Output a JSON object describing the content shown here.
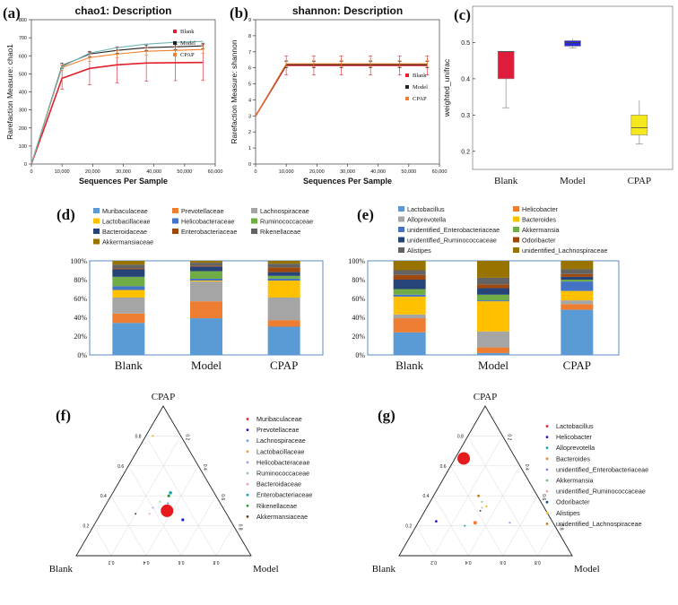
{
  "chart_data": [
    {
      "id": "a",
      "type": "line",
      "panel_label": "(a)",
      "title": "chao1: Description",
      "xlabel": "Sequences Per Sample",
      "ylabel": "Rarefaction Measure: chao1",
      "xlim": [
        0,
        60000
      ],
      "ylim": [
        0,
        800
      ],
      "x_ticks": [
        "0",
        "10,000",
        "20,000",
        "30,000",
        "40,000",
        "50,000",
        "60,000"
      ],
      "y_ticks": [
        "0",
        "100",
        "200",
        "300",
        "400",
        "500",
        "600",
        "700",
        "800"
      ],
      "legend_position": "top-right",
      "x": [
        0,
        10000,
        19000,
        28000,
        37500,
        47000,
        56000
      ],
      "series": [
        {
          "name": "Blank",
          "color": "#e0202c",
          "values": [
            0,
            475,
            530,
            550,
            560,
            562,
            563
          ],
          "err": [
            0,
            60,
            90,
            100,
            100,
            100,
            100
          ]
        },
        {
          "name": "Model",
          "color": "#222222",
          "values": [
            0,
            545,
            610,
            630,
            645,
            650,
            655
          ],
          "err": [
            0,
            15,
            15,
            15,
            15,
            15,
            15
          ]
        },
        {
          "name": "CPAP",
          "color": "#f08030",
          "values": [
            0,
            535,
            590,
            610,
            625,
            630,
            635
          ],
          "err": [
            0,
            15,
            20,
            20,
            20,
            20,
            20
          ]
        },
        {
          "name": "",
          "color": "#70b8b8",
          "values": [
            0,
            540,
            615,
            645,
            665,
            675,
            680
          ],
          "err": [
            0,
            0,
            0,
            0,
            0,
            0,
            0
          ]
        }
      ]
    },
    {
      "id": "b",
      "type": "line",
      "panel_label": "(b)",
      "title": "shannon: Description",
      "xlabel": "Sequences Per Sample",
      "ylabel": "Rarefaction Measure: shannon",
      "xlim": [
        0,
        60000
      ],
      "ylim": [
        0,
        9
      ],
      "x_ticks": [
        "0",
        "10,000",
        "20,000",
        "30,000",
        "40,000",
        "50,000",
        "60,000"
      ],
      "y_ticks": [
        "0",
        "1",
        "2",
        "3",
        "4",
        "5",
        "6",
        "7",
        "8",
        "9"
      ],
      "legend_position": "right",
      "x": [
        0,
        10000,
        19000,
        28000,
        37500,
        47000,
        56000
      ],
      "series": [
        {
          "name": "Blank",
          "color": "#e0202c",
          "values": [
            3.0,
            6.15,
            6.15,
            6.15,
            6.15,
            6.15,
            6.15
          ],
          "err": [
            0,
            0.6,
            0.6,
            0.6,
            0.6,
            0.6,
            0.6
          ]
        },
        {
          "name": "Model",
          "color": "#222222",
          "values": [
            3.0,
            6.2,
            6.2,
            6.2,
            6.2,
            6.2,
            6.2
          ],
          "err": [
            0,
            0.2,
            0.2,
            0.2,
            0.2,
            0.2,
            0.2
          ]
        },
        {
          "name": "CPAP",
          "color": "#f08030",
          "values": [
            3.0,
            6.25,
            6.25,
            6.25,
            6.25,
            6.25,
            6.25
          ],
          "err": [
            0,
            0.2,
            0.2,
            0.2,
            0.2,
            0.2,
            0.2
          ]
        }
      ]
    },
    {
      "id": "c",
      "type": "box",
      "panel_label": "(c)",
      "ylabel": "weighted_unifrac",
      "ylim": [
        0.15,
        0.6
      ],
      "y_ticks": [
        "0.2",
        "0.3",
        "0.4",
        "0.5"
      ],
      "categories": [
        "Blank",
        "Model",
        "CPAP"
      ],
      "boxes": [
        {
          "name": "Blank",
          "color": "#e01c3c",
          "min": 0.32,
          "q1": 0.4,
          "median": 0.475,
          "q3": 0.475,
          "max": 0.475
        },
        {
          "name": "Model",
          "color": "#2a2ad0",
          "min": 0.485,
          "q1": 0.49,
          "median": 0.5,
          "q3": 0.505,
          "max": 0.51
        },
        {
          "name": "CPAP",
          "color": "#f5e81c",
          "min": 0.22,
          "q1": 0.245,
          "median": 0.265,
          "q3": 0.3,
          "max": 0.34
        }
      ]
    },
    {
      "id": "d",
      "type": "stacked_bar",
      "panel_label": "(d)",
      "categories": [
        "Blank",
        "Model",
        "CPAP"
      ],
      "y_ticks": [
        "0%",
        "20%",
        "40%",
        "60%",
        "80%",
        "100%"
      ],
      "series": [
        {
          "name": "Muribaculaceae",
          "color": "#5a9bd5",
          "values": [
            34,
            39,
            30
          ]
        },
        {
          "name": "Prevotellaceae",
          "color": "#ed7d31",
          "values": [
            10,
            18,
            7
          ]
        },
        {
          "name": "Lachnospiraceae",
          "color": "#a5a5a5",
          "values": [
            17,
            21,
            24
          ]
        },
        {
          "name": "Lactobacillaceae",
          "color": "#ffc000",
          "values": [
            8,
            1,
            18
          ]
        },
        {
          "name": "Helicobacteraceae",
          "color": "#4472c4",
          "values": [
            4,
            2,
            2
          ]
        },
        {
          "name": "Ruminococcaceae",
          "color": "#70ad47",
          "values": [
            10,
            8,
            3
          ]
        },
        {
          "name": "Bacteroidaceae",
          "color": "#264478",
          "values": [
            8,
            5,
            4
          ]
        },
        {
          "name": "Enterobacteriaceae",
          "color": "#9e480e",
          "values": [
            1,
            1,
            5
          ]
        },
        {
          "name": "Rikenellaceae",
          "color": "#636363",
          "values": [
            4,
            3,
            4
          ]
        },
        {
          "name": "Akkermansiaceae",
          "color": "#997300",
          "values": [
            4,
            2,
            3
          ]
        }
      ]
    },
    {
      "id": "e",
      "type": "stacked_bar",
      "panel_label": "(e)",
      "categories": [
        "Blank",
        "Model",
        "CPAP"
      ],
      "y_ticks": [
        "0%",
        "20%",
        "40%",
        "60%",
        "80%",
        "100%"
      ],
      "series": [
        {
          "name": "Lactobacillus",
          "color": "#5a9bd5",
          "values": [
            24,
            2,
            48
          ]
        },
        {
          "name": "Helicobacter",
          "color": "#ed7d31",
          "values": [
            15,
            6,
            6
          ]
        },
        {
          "name": "Alloprevotella",
          "color": "#a5a5a5",
          "values": [
            4,
            17,
            4
          ]
        },
        {
          "name": "Bacteroides",
          "color": "#ffc000",
          "values": [
            19,
            32,
            10
          ]
        },
        {
          "name": "unidentified_Enterobacteriaceae",
          "color": "#4472c4",
          "values": [
            2,
            1,
            10
          ]
        },
        {
          "name": "Akkermansia",
          "color": "#70ad47",
          "values": [
            6,
            6,
            2
          ]
        },
        {
          "name": "unidentified_Ruminococcaceae",
          "color": "#264478",
          "values": [
            10,
            7,
            3
          ]
        },
        {
          "name": "Odoribacter",
          "color": "#9e480e",
          "values": [
            5,
            4,
            3
          ]
        },
        {
          "name": "Alistipes",
          "color": "#636363",
          "values": [
            5,
            7,
            5
          ]
        },
        {
          "name": "unidentified_Lachnospiraceae",
          "color": "#997300",
          "values": [
            10,
            18,
            9
          ]
        }
      ]
    },
    {
      "id": "f",
      "type": "ternary",
      "panel_label": "(f)",
      "vertices": {
        "top": "CPAP",
        "left": "Blank",
        "right": "Model"
      },
      "axis_ticks": [
        "0.2",
        "0.4",
        "0.6",
        "0.8"
      ],
      "points": [
        {
          "name": "Muribaculaceae",
          "color": "#e41a1c",
          "cpap": 0.3,
          "blank": 0.33,
          "model": 0.37,
          "size": 7
        },
        {
          "name": "Prevotellaceae",
          "color": "#1a1ac8",
          "cpap": 0.24,
          "blank": 0.27,
          "model": 0.49,
          "size": 1.6
        },
        {
          "name": "Lachnospiraceae",
          "color": "#6fa8dc",
          "cpap": 0.35,
          "blank": 0.3,
          "model": 0.35,
          "size": 1.2
        },
        {
          "name": "Lactobacillaceae",
          "color": "#f0a030",
          "cpap": 0.8,
          "blank": 0.16,
          "model": 0.04,
          "size": 1.0
        },
        {
          "name": "Helicobacteraceae",
          "color": "#a0a0e0",
          "cpap": 0.32,
          "blank": 0.4,
          "model": 0.28,
          "size": 1.0
        },
        {
          "name": "Ruminococcaceae",
          "color": "#90d0a0",
          "cpap": 0.36,
          "blank": 0.34,
          "model": 0.3,
          "size": 1.0
        },
        {
          "name": "Bacteroidaceae",
          "color": "#f4a0a0",
          "cpap": 0.28,
          "blank": 0.44,
          "model": 0.28,
          "size": 1.0
        },
        {
          "name": "Enterobacteriaceae",
          "color": "#17a8b8",
          "cpap": 0.42,
          "blank": 0.25,
          "model": 0.33,
          "size": 1.8
        },
        {
          "name": "Rikenellaceae",
          "color": "#2ca02c",
          "cpap": 0.4,
          "blank": 0.27,
          "model": 0.33,
          "size": 1.6
        },
        {
          "name": "Akkermansiaceae",
          "color": "#6b3a1c",
          "cpap": 0.28,
          "blank": 0.52,
          "model": 0.2,
          "size": 1.0
        }
      ]
    },
    {
      "id": "g",
      "type": "ternary",
      "panel_label": "(g)",
      "vertices": {
        "top": "CPAP",
        "left": "Blank",
        "right": "Model"
      },
      "axis_ticks": [
        "0.2",
        "0.4",
        "0.6",
        "0.8"
      ],
      "points": [
        {
          "name": "Lactobacillus",
          "color": "#e41a1c",
          "cpap": 0.65,
          "blank": 0.3,
          "model": 0.05,
          "size": 7
        },
        {
          "name": "Helicobacter",
          "color": "#1a1ac8",
          "cpap": 0.23,
          "blank": 0.67,
          "model": 0.1,
          "size": 1.4
        },
        {
          "name": "Alloprevotella",
          "color": "#17a8b8",
          "cpap": 0.2,
          "blank": 0.52,
          "model": 0.28,
          "size": 1.0
        },
        {
          "name": "Bacteroides",
          "color": "#f08030",
          "cpap": 0.22,
          "blank": 0.45,
          "model": 0.33,
          "size": 2.0
        },
        {
          "name": "unidentified_Enterobacteriaceae",
          "color": "#8a8ae0",
          "cpap": 0.22,
          "blank": 0.25,
          "model": 0.53,
          "size": 1.0
        },
        {
          "name": "Akkermansia",
          "color": "#80c080",
          "cpap": 0.36,
          "blank": 0.34,
          "model": 0.3,
          "size": 1.0
        },
        {
          "name": "unidentified_Ruminococcaceae",
          "color": "#f4a0a0",
          "cpap": 0.32,
          "blank": 0.36,
          "model": 0.32,
          "size": 1.0
        },
        {
          "name": "Odoribacter",
          "color": "#205080",
          "cpap": 0.3,
          "blank": 0.38,
          "model": 0.32,
          "size": 1.0
        },
        {
          "name": "Alistipes",
          "color": "#f0c030",
          "cpap": 0.33,
          "blank": 0.33,
          "model": 0.34,
          "size": 1.2
        },
        {
          "name": "unidentified_Lachnospiraceae",
          "color": "#c08020",
          "cpap": 0.4,
          "blank": 0.34,
          "model": 0.26,
          "size": 1.4
        }
      ]
    }
  ]
}
